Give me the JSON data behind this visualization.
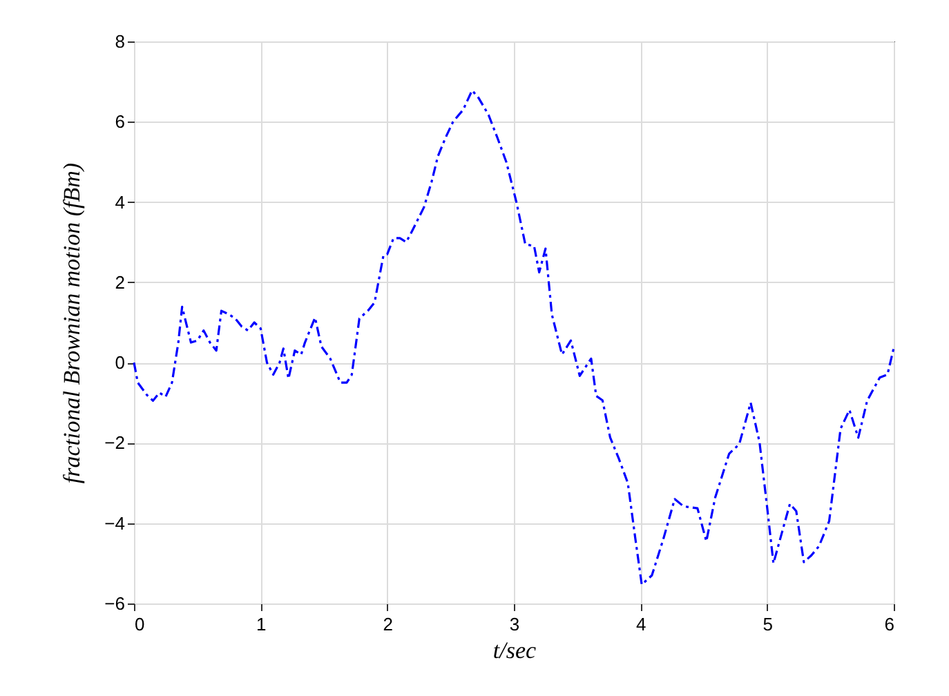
{
  "chart_data": {
    "type": "line",
    "xlabel": "t/sec",
    "ylabel": "fractional Brownian motion (fBm)",
    "xlim": [
      0,
      6
    ],
    "ylim": [
      -6,
      8
    ],
    "xticks": [
      0,
      1,
      2,
      3,
      4,
      5,
      6
    ],
    "yticks": [
      -6,
      -4,
      -2,
      0,
      2,
      4,
      6,
      8
    ],
    "grid": true,
    "marker": "none",
    "line_style": "dashed",
    "x": [
      0,
      0.03,
      0.1,
      0.15,
      0.2,
      0.25,
      0.3,
      0.35,
      0.38,
      0.45,
      0.5,
      0.55,
      0.6,
      0.65,
      0.69,
      0.75,
      0.8,
      0.85,
      0.9,
      0.95,
      1.0,
      1.05,
      1.1,
      1.15,
      1.18,
      1.22,
      1.27,
      1.32,
      1.35,
      1.43,
      1.48,
      1.55,
      1.63,
      1.68,
      1.72,
      1.78,
      1.85,
      1.9,
      1.97,
      2.0,
      2.05,
      2.1,
      2.15,
      2.2,
      2.29,
      2.35,
      2.4,
      2.46,
      2.52,
      2.6,
      2.67,
      2.72,
      2.8,
      2.87,
      2.94,
      3.02,
      3.09,
      3.16,
      3.2,
      3.25,
      3.3,
      3.38,
      3.45,
      3.52,
      3.61,
      3.65,
      3.7,
      3.76,
      3.83,
      3.9,
      3.96,
      4.01,
      4.09,
      4.18,
      4.27,
      4.34,
      4.45,
      4.52,
      4.59,
      4.7,
      4.78,
      4.87,
      4.94,
      5.0,
      5.05,
      5.12,
      5.18,
      5.23,
      5.29,
      5.35,
      5.41,
      5.49,
      5.58,
      5.65,
      5.72,
      5.79,
      5.89,
      5.95,
      6.0
    ],
    "series": [
      {
        "color": "#0000ff",
        "values": [
          0,
          -0.5,
          -0.8,
          -0.95,
          -0.75,
          -0.85,
          -0.5,
          0.5,
          1.39,
          0.5,
          0.55,
          0.8,
          0.5,
          0.3,
          1.29,
          1.2,
          1.1,
          0.9,
          0.8,
          1.0,
          0.85,
          0.0,
          -0.3,
          0.0,
          0.35,
          -0.4,
          0.3,
          0.2,
          0.5,
          1.12,
          0.4,
          0.1,
          -0.5,
          -0.5,
          -0.3,
          1.1,
          1.3,
          1.5,
          2.67,
          2.7,
          3.1,
          3.1,
          3.0,
          3.3,
          3.87,
          4.5,
          5.14,
          5.6,
          6.0,
          6.3,
          6.78,
          6.6,
          6.17,
          5.6,
          5.0,
          4.0,
          2.95,
          2.9,
          2.25,
          2.84,
          1.2,
          0.2,
          0.55,
          -0.33,
          0.1,
          -0.83,
          -0.94,
          -1.86,
          -2.4,
          -3.0,
          -4.4,
          -5.53,
          -5.3,
          -4.4,
          -3.4,
          -3.58,
          -3.63,
          -4.45,
          -3.36,
          -2.27,
          -2.03,
          -1.0,
          -1.98,
          -3.6,
          -5.0,
          -4.2,
          -3.52,
          -3.7,
          -4.97,
          -4.8,
          -4.57,
          -3.95,
          -1.65,
          -1.18,
          -1.87,
          -0.95,
          -0.37,
          -0.3,
          0.36
        ]
      }
    ]
  }
}
